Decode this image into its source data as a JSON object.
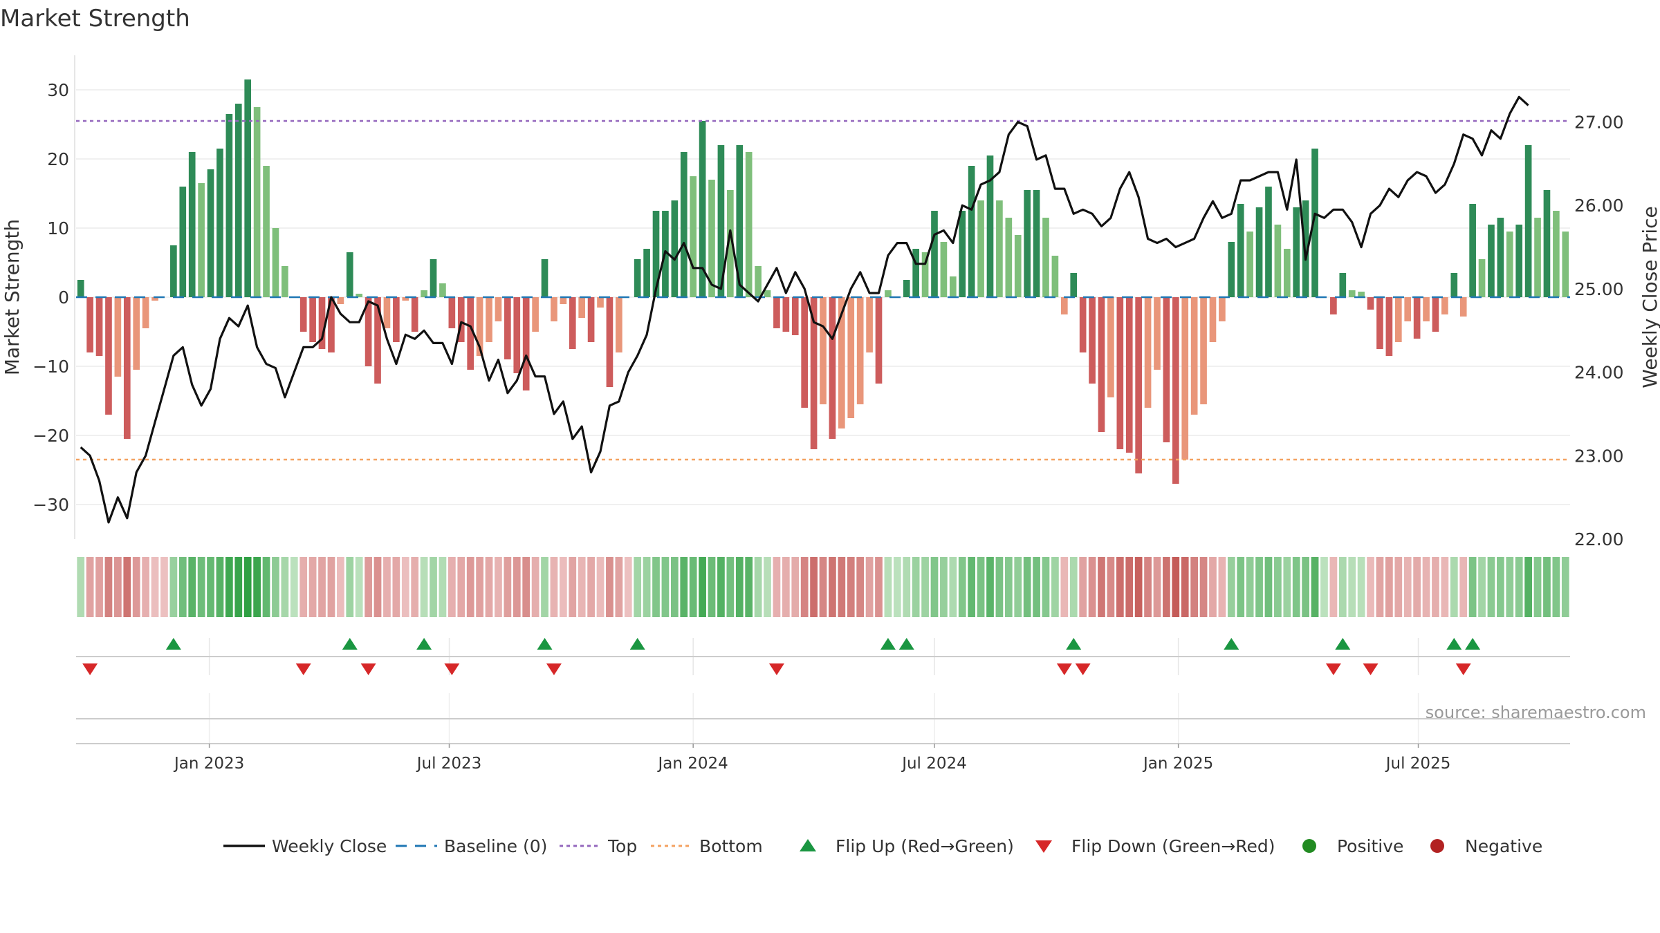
{
  "chart_data": {
    "type": "bar",
    "title": "Market Strength",
    "ylabel_left": "Market Strength",
    "ylabel_right": "Weekly Close Price",
    "ylim_left": [
      -35,
      35
    ],
    "yticks_left": [
      30,
      20,
      10,
      0,
      -10,
      -20,
      -30
    ],
    "ytick_labels_left": [
      "30",
      "20",
      "10",
      "0",
      "−10",
      "−20",
      "−30"
    ],
    "ylim_right": [
      22.0,
      27.8
    ],
    "yticks_right": [
      27.0,
      26.0,
      25.0,
      24.0,
      23.0,
      22.0
    ],
    "ytick_labels_right": [
      "27.00",
      "26.00",
      "25.00",
      "24.00",
      "23.00",
      "22.00"
    ],
    "top_level": 25.5,
    "bottom_level": -23.5,
    "date_start": "2022-09-26",
    "xticks": [
      "2023-01-01",
      "2023-07-01",
      "2024-01-01",
      "2024-07-01",
      "2025-01-01",
      "2025-07-01"
    ],
    "xtick_labels": [
      "Jan 2023",
      "Jul 2023",
      "Jan 2024",
      "Jul 2024",
      "Jan 2025",
      "Jul 2025"
    ],
    "strength": [
      2.5,
      -8.0,
      -8.5,
      -17.0,
      -11.5,
      -20.5,
      -10.5,
      -4.5,
      -0.5,
      0.0,
      7.5,
      16.0,
      21.0,
      16.5,
      18.5,
      21.5,
      26.5,
      28.0,
      31.5,
      27.5,
      19.0,
      10.0,
      4.5,
      0.0,
      -5.0,
      -6.5,
      -7.5,
      -8.0,
      -1.0,
      6.5,
      0.5,
      -10.0,
      -12.5,
      -4.5,
      -6.5,
      -0.5,
      -5.0,
      1.0,
      5.5,
      2.0,
      -4.5,
      -6.5,
      -10.5,
      -8.5,
      -6.5,
      -3.5,
      -9.0,
      -11.0,
      -13.5,
      -5.0,
      5.5,
      -3.5,
      -1.0,
      -7.5,
      -3.0,
      -6.5,
      -1.5,
      -13.0,
      -8.0,
      0.0,
      5.5,
      7.0,
      12.5,
      12.5,
      14.0,
      21.0,
      17.5,
      25.5,
      17.0,
      22.0,
      15.5,
      22.0,
      21.0,
      4.5,
      1.0,
      -4.5,
      -5.0,
      -5.5,
      -16.0,
      -22.0,
      -15.5,
      -20.5,
      -19.0,
      -17.5,
      -15.5,
      -8.0,
      -12.5,
      1.0,
      0.0,
      2.5,
      7.0,
      6.5,
      12.5,
      8.0,
      3.0,
      12.5,
      19.0,
      14.0,
      20.5,
      14.0,
      11.5,
      9.0,
      15.5,
      15.5,
      11.5,
      6.0,
      -2.5,
      3.5,
      -8.0,
      -12.5,
      -19.5,
      -14.5,
      -22.0,
      -22.5,
      -25.5,
      -16.0,
      -10.5,
      -21.0,
      -27.0,
      -23.5,
      -17.0,
      -15.5,
      -6.5,
      -3.5,
      8.0,
      13.5,
      9.5,
      13.0,
      16.0,
      10.5,
      7.0,
      13.0,
      14.0,
      21.5,
      0.0,
      -2.5,
      3.5,
      1.0,
      0.8,
      -1.8,
      -7.5,
      -8.5,
      -6.5,
      -3.5,
      -6.0,
      -3.5,
      -5.0,
      -2.5,
      3.5,
      -2.8,
      13.5,
      5.5,
      10.5,
      11.5,
      9.5,
      10.5,
      22.0,
      11.5,
      15.5,
      12.5,
      9.5
    ],
    "weekly_close": [
      23.1,
      23.0,
      22.7,
      22.2,
      22.5,
      22.25,
      22.8,
      23.0,
      23.4,
      23.8,
      24.2,
      24.3,
      23.85,
      23.6,
      23.8,
      24.4,
      24.65,
      24.55,
      24.8,
      24.3,
      24.1,
      24.05,
      23.7,
      24.0,
      24.3,
      24.3,
      24.4,
      24.9,
      24.7,
      24.6,
      24.6,
      24.85,
      24.8,
      24.4,
      24.1,
      24.45,
      24.4,
      24.5,
      24.35,
      24.35,
      24.1,
      24.6,
      24.55,
      24.3,
      23.9,
      24.15,
      23.75,
      23.9,
      24.2,
      23.95,
      23.95,
      23.5,
      23.65,
      23.2,
      23.35,
      22.8,
      23.05,
      23.6,
      23.65,
      24.0,
      24.2,
      24.45,
      25.0,
      25.45,
      25.35,
      25.55,
      25.25,
      25.25,
      25.05,
      25.0,
      25.7,
      25.05,
      24.95,
      24.85,
      25.05,
      25.25,
      24.95,
      25.2,
      25.0,
      24.6,
      24.55,
      24.4,
      24.7,
      25.0,
      25.2,
      24.95,
      24.95,
      25.4,
      25.55,
      25.55,
      25.3,
      25.3,
      25.65,
      25.7,
      25.55,
      26.0,
      25.95,
      26.25,
      26.3,
      26.4,
      26.85,
      27.0,
      26.95,
      26.55,
      26.6,
      26.2,
      26.2,
      25.9,
      25.95,
      25.9,
      25.75,
      25.85,
      26.2,
      26.4,
      26.1,
      25.6,
      25.55,
      25.6,
      25.5,
      25.55,
      25.6,
      25.85,
      26.05,
      25.85,
      25.9,
      26.3,
      26.3,
      26.35,
      26.4,
      26.4,
      25.95,
      26.55,
      25.35,
      25.9,
      25.85,
      25.95,
      25.95,
      25.8,
      25.5,
      25.9,
      26.0,
      26.2,
      26.1,
      26.3,
      26.4,
      26.35,
      26.15,
      26.25,
      26.5,
      26.85,
      26.8,
      26.6,
      26.9,
      26.8,
      27.1,
      27.3,
      27.2
    ]
  },
  "legend": [
    {
      "label": "Weekly Close",
      "kind": "line"
    },
    {
      "label": "Baseline (0)",
      "kind": "dash"
    },
    {
      "label": "Top",
      "kind": "dot-purple"
    },
    {
      "label": "Bottom",
      "kind": "dot-orange"
    },
    {
      "label": "Flip Up (Red→Green)",
      "kind": "tri-up"
    },
    {
      "label": "Flip Down (Green→Red)",
      "kind": "tri-down"
    },
    {
      "label": "Positive",
      "kind": "circle-green"
    },
    {
      "label": "Negative",
      "kind": "circle-red"
    }
  ],
  "source_text": "source: sharemaestro.com",
  "colors": {
    "pos_strong": "#2e8b57",
    "pos_weak": "#7fbf7b",
    "neg_strong": "#cd5c5c",
    "neg_weak": "#e9967a",
    "line": "#111111",
    "baseline": "#1f77b4",
    "top": "#9467bd",
    "bottom": "#f4a261",
    "flip_up": "#1a9641",
    "flip_down": "#d62728",
    "positive_dot": "#228b22",
    "negative_dot": "#b22222"
  }
}
